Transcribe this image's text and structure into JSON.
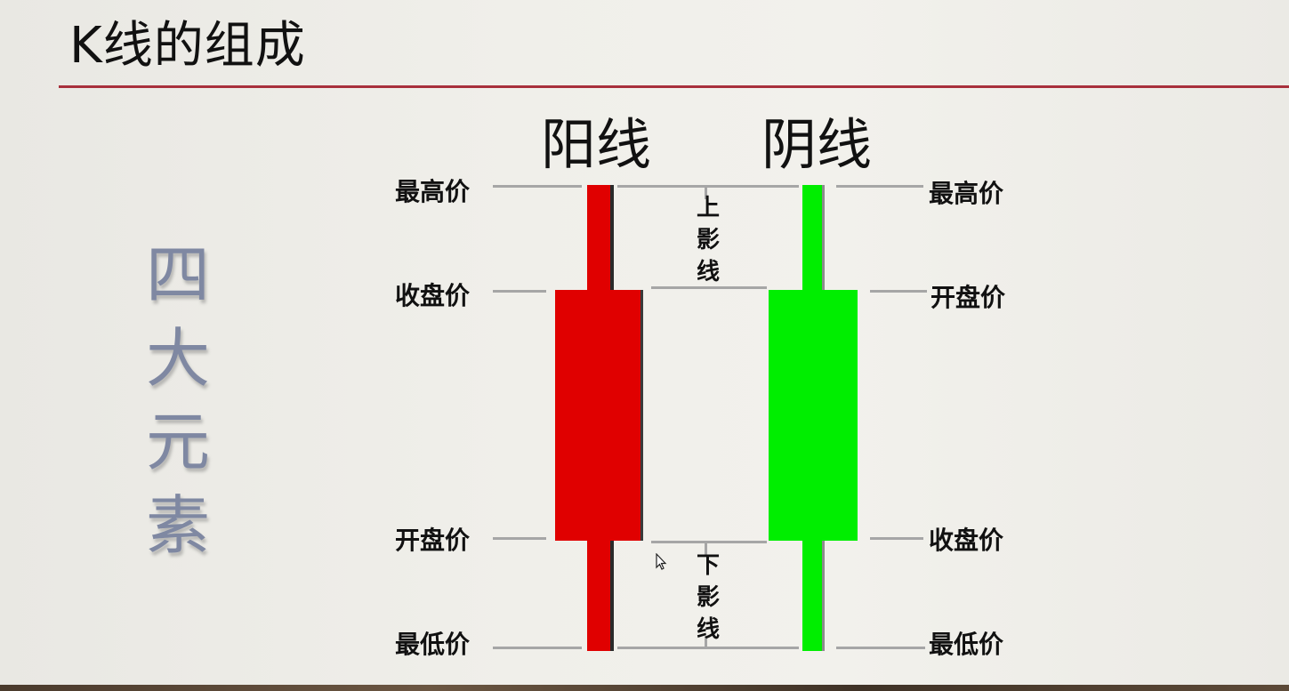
{
  "title": "K线的组成",
  "side_word": "四\n大\n元\n素",
  "columns": {
    "yang": {
      "heading": "阳线",
      "color": "#e00000"
    },
    "yin": {
      "heading": "阴线",
      "color": "#00ee00"
    }
  },
  "labels_left": {
    "high": "最高价",
    "close": "收盘价",
    "open": "开盘价",
    "low": "最低价"
  },
  "labels_right": {
    "high": "最高价",
    "open": "开盘价",
    "close": "收盘价",
    "low": "最低价"
  },
  "upper_shadow": "上\n影\n线",
  "lower_shadow": "下\n影\n线",
  "colors": {
    "rule": "#a8303c",
    "guide": "#a6a6a6"
  }
}
